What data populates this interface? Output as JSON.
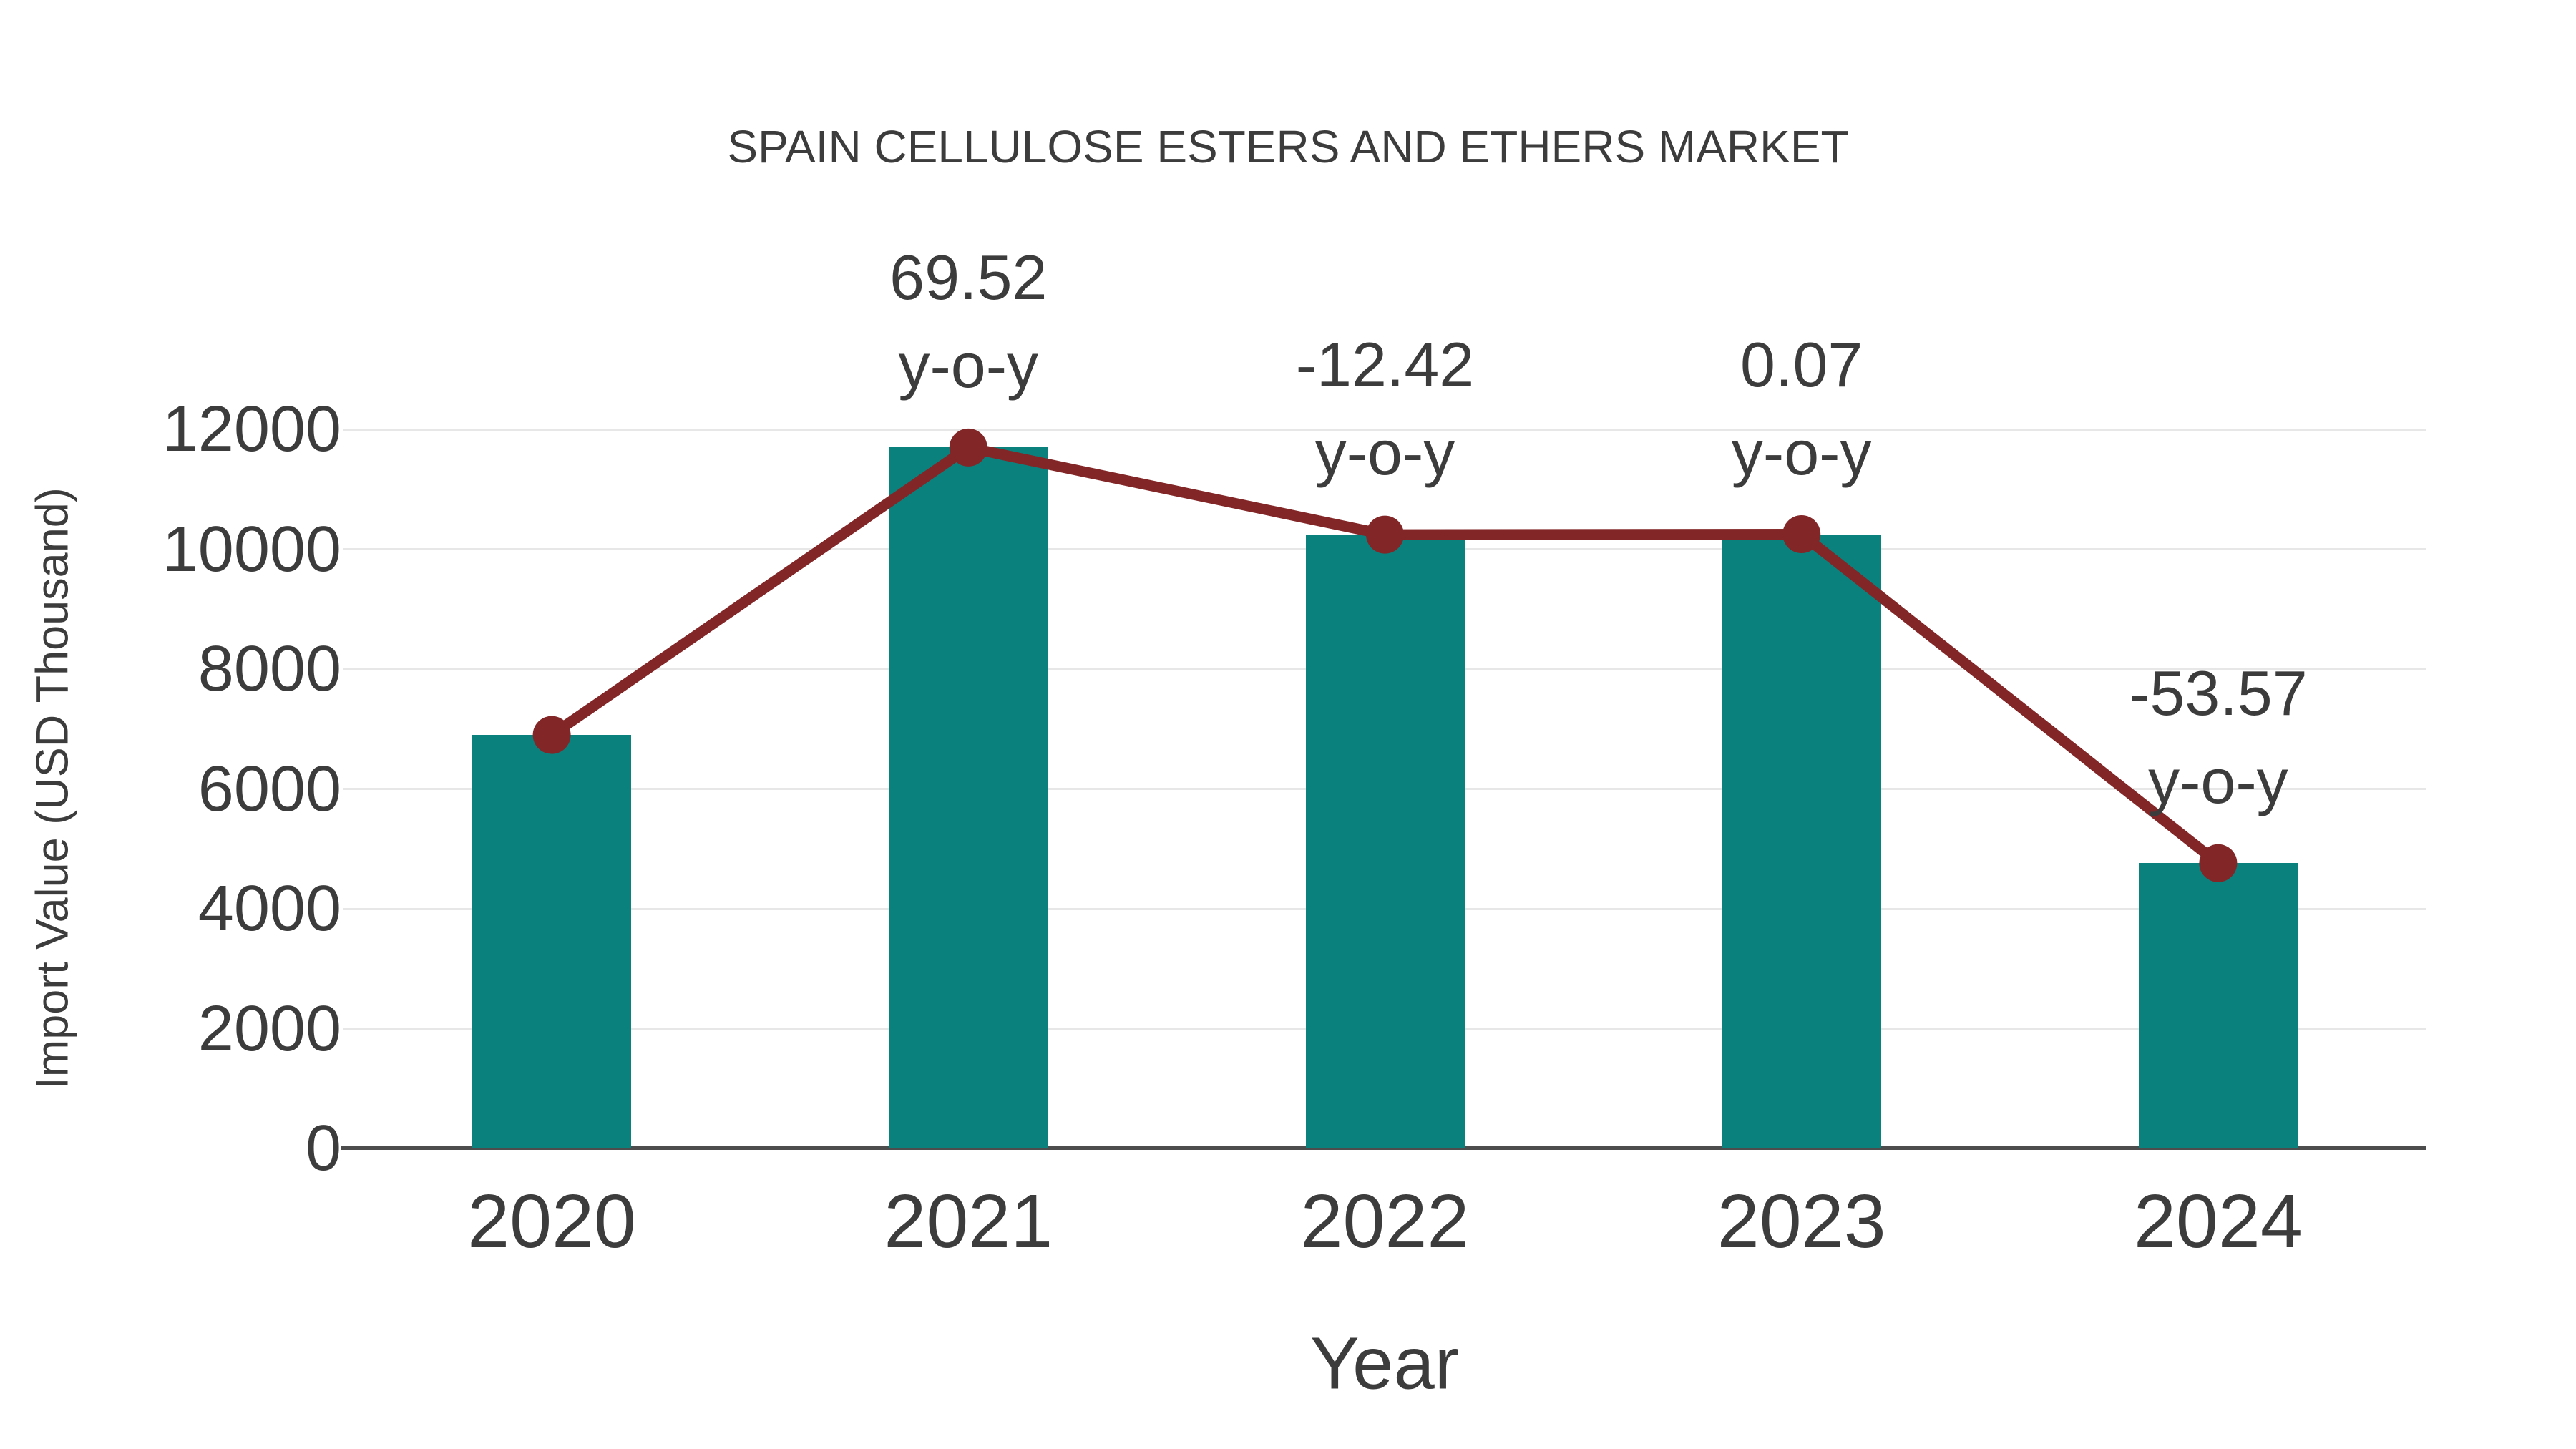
{
  "chart_data": {
    "type": "bar",
    "title": "SPAIN CELLULOSE ESTERS AND ETHERS MARKET",
    "xlabel": "Year",
    "ylabel": "Import Value (USD Thousand)",
    "categories": [
      "2020",
      "2021",
      "2022",
      "2023",
      "2024"
    ],
    "series": [
      {
        "name": "Import Value (USD Thousand)",
        "type": "bar",
        "values": [
          6900,
          11697,
          10244,
          10251,
          4760
        ]
      },
      {
        "name": "Import Value trend line",
        "type": "line",
        "values": [
          6900,
          11697,
          10244,
          10251,
          4760
        ]
      }
    ],
    "annotations": [
      {
        "category": "2021",
        "line1": "69.52",
        "line2": "y-o-y"
      },
      {
        "category": "2022",
        "line1": "-12.42",
        "line2": "y-o-y"
      },
      {
        "category": "2023",
        "line1": "0.07",
        "line2": "y-o-y"
      },
      {
        "category": "2024",
        "line1": "-53.57",
        "line2": "y-o-y"
      }
    ],
    "yticks": [
      0,
      2000,
      4000,
      6000,
      8000,
      10000,
      12000
    ],
    "ylim": [
      0,
      12550
    ],
    "grid": "horizontal",
    "legend": "none"
  },
  "colors": {
    "bar": "#0b817d",
    "line": "#832627",
    "marker": "#832627",
    "text": "#3c3c3c",
    "gridline": "#e7e7e7",
    "axis": "#4d4d4d",
    "background": "#ffffff"
  }
}
